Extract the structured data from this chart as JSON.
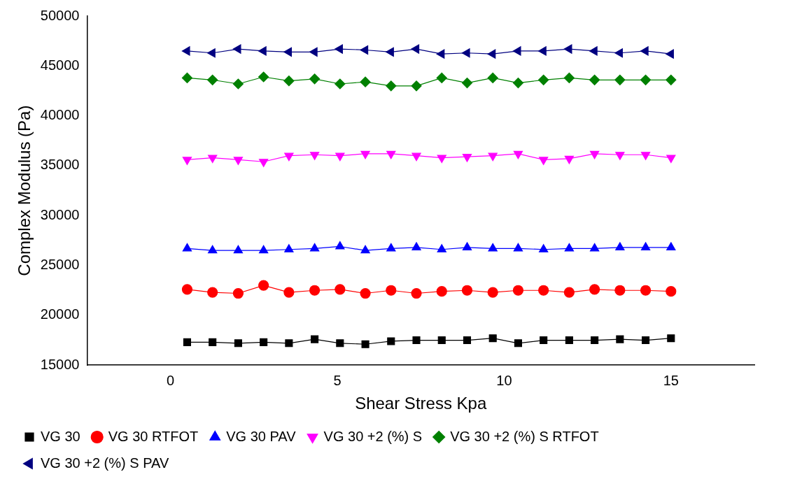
{
  "chart_data": {
    "type": "line",
    "xlabel": "Shear Stress Kpa",
    "ylabel": "Complex Modulus (Pa)",
    "x": [
      0.5,
      1.26,
      2.03,
      2.79,
      3.55,
      4.32,
      5.08,
      5.84,
      6.61,
      7.37,
      8.13,
      8.89,
      9.66,
      10.42,
      11.18,
      11.95,
      12.71,
      13.47,
      14.24,
      15.0
    ],
    "xlim": [
      -2.5,
      17.5
    ],
    "xticks": [
      0,
      5,
      10,
      15
    ],
    "ylim": [
      15000,
      50000
    ],
    "yticks": [
      15000,
      20000,
      25000,
      30000,
      35000,
      40000,
      45000,
      50000
    ],
    "grid": false,
    "legend": "bottom",
    "line_style": "solid",
    "series": [
      {
        "name": "VG 30",
        "color": "#000000",
        "marker": "square",
        "values": [
          17300,
          17300,
          17200,
          17300,
          17200,
          17600,
          17200,
          17100,
          17400,
          17500,
          17500,
          17500,
          17700,
          17200,
          17500,
          17500,
          17500,
          17600,
          17500,
          17700
        ]
      },
      {
        "name": "VG 30 RTFOT",
        "color": "#ff0000",
        "marker": "circle",
        "values": [
          22600,
          22300,
          22200,
          23000,
          22300,
          22500,
          22600,
          22200,
          22500,
          22200,
          22400,
          22500,
          22300,
          22500,
          22500,
          22300,
          22600,
          22500,
          22500,
          22400
        ]
      },
      {
        "name": "VG 30 PAV",
        "color": "#0000ff",
        "marker": "triangle",
        "values": [
          26700,
          26500,
          26500,
          26500,
          26600,
          26700,
          26900,
          26500,
          26700,
          26800,
          26600,
          26800,
          26700,
          26700,
          26600,
          26700,
          26700,
          26800,
          26800,
          26800
        ]
      },
      {
        "name": "VG 30 +2 (%) S",
        "color": "#ff00ff",
        "marker": "triangle-down",
        "values": [
          35600,
          35800,
          35600,
          35400,
          36000,
          36100,
          36000,
          36200,
          36200,
          36000,
          35800,
          35900,
          36000,
          36200,
          35600,
          35700,
          36200,
          36100,
          36100,
          35800
        ]
      },
      {
        "name": "VG 30 +2 (%) S RTFOT",
        "color": "#008000",
        "marker": "diamond",
        "values": [
          43800,
          43600,
          43200,
          43900,
          43500,
          43700,
          43200,
          43400,
          43000,
          43000,
          43800,
          43300,
          43800,
          43300,
          43600,
          43800,
          43600,
          43600,
          43600,
          43600
        ]
      },
      {
        "name": "VG 30 +2 (%) S PAV",
        "color": "#000080",
        "marker": "triangle-left",
        "values": [
          46500,
          46300,
          46700,
          46500,
          46400,
          46400,
          46700,
          46600,
          46400,
          46700,
          46200,
          46300,
          46200,
          46500,
          46500,
          46700,
          46500,
          46300,
          46500,
          46200
        ]
      }
    ]
  }
}
